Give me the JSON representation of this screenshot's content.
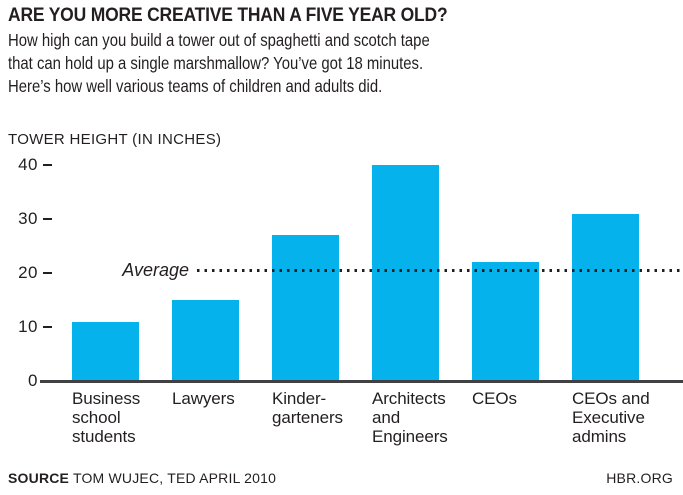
{
  "header": {
    "title": "ARE YOU MORE CREATIVE THAN A FIVE YEAR OLD?",
    "subtitle_lines": [
      "How high can you build a tower out of spaghetti and scotch tape",
      "that can hold up a single marshmallow? You’ve got 18 minutes.",
      "Here’s how well various teams of children and adults did."
    ]
  },
  "chart": {
    "axis_title": "TOWER HEIGHT (IN INCHES)",
    "average_label": "Average"
  },
  "chart_data": {
    "type": "bar",
    "title": "ARE YOU MORE CREATIVE THAN A FIVE YEAR OLD?",
    "categories": [
      "Business school students",
      "Lawyers",
      "Kindergarteners",
      "Architects and Engineers",
      "CEOs",
      "CEOs and Executive admins"
    ],
    "category_label_lines": [
      [
        "Business",
        "school",
        "students"
      ],
      [
        "Lawyers"
      ],
      [
        "Kinder-",
        "garteners"
      ],
      [
        "Architects",
        "and",
        "Engineers"
      ],
      [
        "CEOs"
      ],
      [
        "CEOs and",
        "Executive",
        "admins"
      ]
    ],
    "values": [
      11,
      15,
      27,
      40,
      22,
      31
    ],
    "xlabel": "",
    "ylabel": "TOWER HEIGHT (IN INCHES)",
    "yticks": [
      0,
      10,
      20,
      30,
      40
    ],
    "ylim": [
      0,
      40
    ],
    "grid": false,
    "legend": "none",
    "annotations": [
      {
        "type": "dotted-line",
        "label": "Average",
        "value": 20.5
      }
    ],
    "bar_color": "#05B2EC"
  },
  "footer": {
    "source_label": "SOURCE",
    "source_text": "TOM WUJEC, TED APRIL 2010",
    "site": "HBR.ORG"
  },
  "colors": {
    "bar": "#05B2EC",
    "text": "#231F20",
    "axis": "#414042",
    "background": "#FFFFFF"
  }
}
